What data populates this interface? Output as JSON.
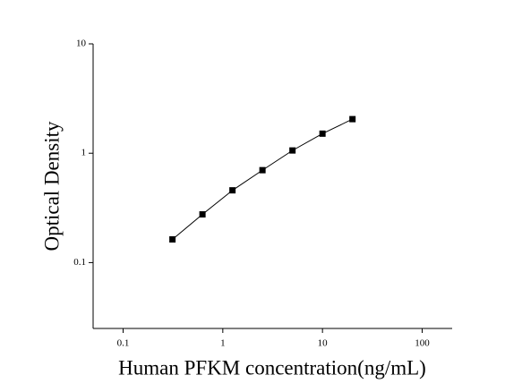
{
  "chart_data": {
    "type": "line",
    "x_label": "Human PFKM concentration(ng/mL)",
    "y_label": "Optical Density",
    "x": [
      0.3125,
      0.625,
      1.25,
      2.5,
      5,
      10,
      20
    ],
    "series": [
      {
        "color": "#000000",
        "values": [
          0.163,
          0.276,
          0.458,
          0.7,
          1.06,
          1.51,
          2.05
        ]
      }
    ],
    "xlim": [
      0.05,
      200
    ],
    "ylim": [
      0.025,
      10
    ],
    "xticks": [
      0.1,
      1,
      10,
      100
    ],
    "yticks": [
      0.1,
      1,
      10
    ],
    "xscale": "log",
    "yscale": "log",
    "markers": true,
    "grid": false
  }
}
